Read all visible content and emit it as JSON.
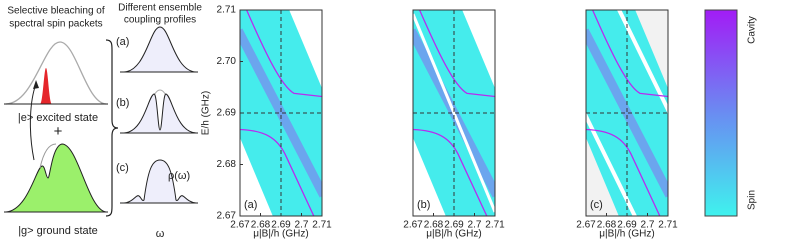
{
  "schematic": {
    "title_lines": [
      "Selective bleaching of",
      "spectral spin packets"
    ],
    "excited_label": "|e> excited state",
    "plus": "+",
    "ground_label": "|g> ground state"
  },
  "profiles": {
    "title_lines": [
      "Different ensemble",
      "coupling profiles"
    ],
    "labels": [
      "(a)",
      "(b)",
      "(c)"
    ],
    "density_label": "ρ(ω)",
    "axis_label": "ω"
  },
  "panels": {
    "x_label": "μ|B|/h (GHz)",
    "y_label": "E/h (GHz)",
    "labels": [
      "(a)",
      "(b)",
      "(c)"
    ],
    "xlim": [
      2.67,
      2.71
    ],
    "ylim": [
      2.67,
      2.71
    ],
    "xticks": [
      2.67,
      2.68,
      2.69,
      2.7,
      2.71
    ],
    "yticks": [
      2.67,
      2.68,
      2.69,
      {
        "value": 2.7,
        "label": "2.70"
      },
      2.71
    ]
  },
  "colorbar": {
    "top_label": "Cavity",
    "bottom_label": "Spin"
  }
}
